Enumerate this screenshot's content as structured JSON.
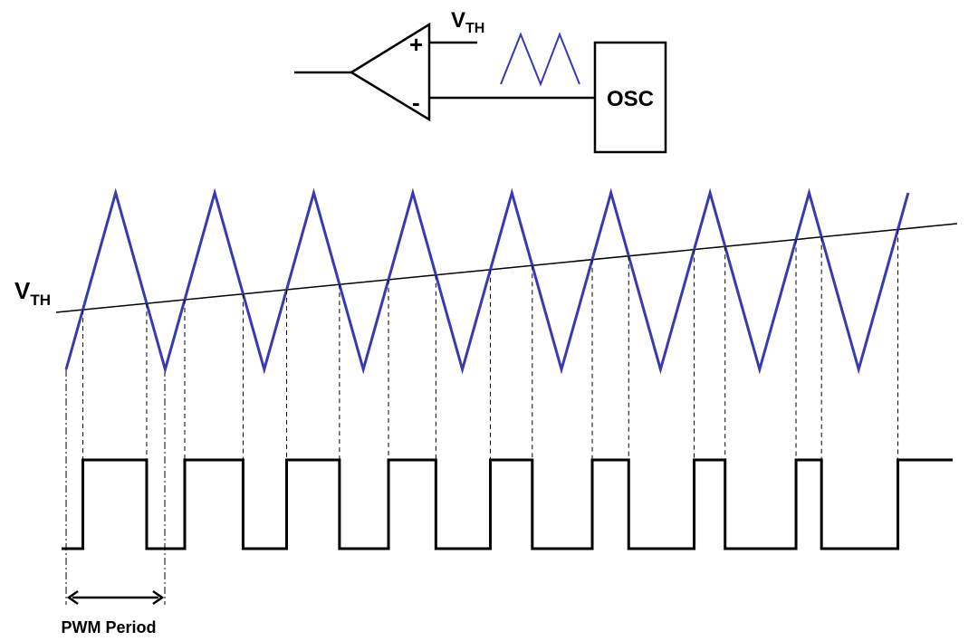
{
  "comparator": {
    "plus": "+",
    "minus": "-",
    "threshold": {
      "main": "V",
      "sub": "TH"
    }
  },
  "oscillator": {
    "label": "OSC"
  },
  "waveform": {
    "threshold": {
      "main": "V",
      "sub": "TH"
    }
  },
  "pwm_period": "PWM Period"
}
